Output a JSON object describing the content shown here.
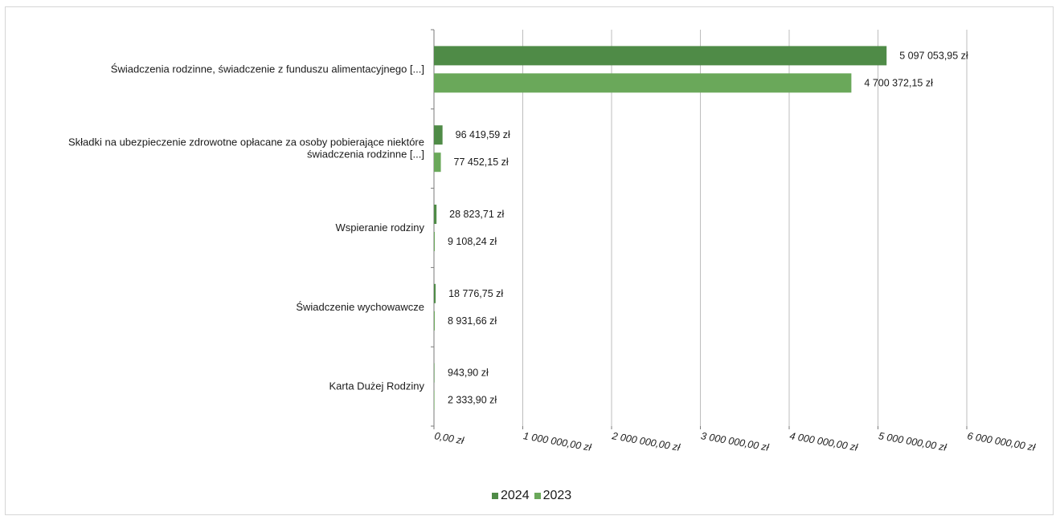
{
  "chart_data": {
    "type": "bar",
    "orientation": "horizontal",
    "title": "",
    "xlabel": "",
    "ylabel": "",
    "xlim": [
      0,
      6000000
    ],
    "grid": true,
    "legend_position": "bottom",
    "categories": [
      [
        "Świadczenia rodzinne, świadczenie z funduszu alimentacyjnego [...]"
      ],
      [
        "Składki na ubezpieczenie zdrowotne opłacane za osoby pobierające niektóre",
        "świadczenia rodzinne [...]"
      ],
      [
        "Wspieranie rodziny"
      ],
      [
        "Świadczenie wychowawcze"
      ],
      [
        "Karta Dużej Rodziny"
      ]
    ],
    "ticks": [
      {
        "value": 0,
        "label": "0,00 zł"
      },
      {
        "value": 1000000,
        "label": "1 000 000,00 zł"
      },
      {
        "value": 2000000,
        "label": "2 000 000,00 zł"
      },
      {
        "value": 3000000,
        "label": "3 000 000,00 zł"
      },
      {
        "value": 4000000,
        "label": "4 000 000,00 zł"
      },
      {
        "value": 5000000,
        "label": "5 000 000,00 zł"
      },
      {
        "value": 6000000,
        "label": "6 000 000,00 zł"
      }
    ],
    "series": [
      {
        "name": "2024",
        "color": "#4f8b47",
        "values": [
          5097053.95,
          96419.59,
          28823.71,
          18776.75,
          943.9
        ],
        "labels": [
          "5 097 053,95 zł",
          "96 419,59 zł",
          "28 823,71 zł",
          "18 776,75 zł",
          "943,90 zł"
        ]
      },
      {
        "name": "2023",
        "color": "#6aa85a",
        "values": [
          4700372.15,
          77452.15,
          9108.24,
          8931.66,
          2333.9
        ],
        "labels": [
          "4 700 372,15 zł",
          "77 452,15 zł",
          "9 108,24 zł",
          "8 931,66 zł",
          "2 333,90 zł"
        ]
      }
    ]
  },
  "legend": {
    "items": [
      {
        "label": "2024",
        "color": "#4f8b47"
      },
      {
        "label": "2023",
        "color": "#6aa85a"
      }
    ]
  }
}
